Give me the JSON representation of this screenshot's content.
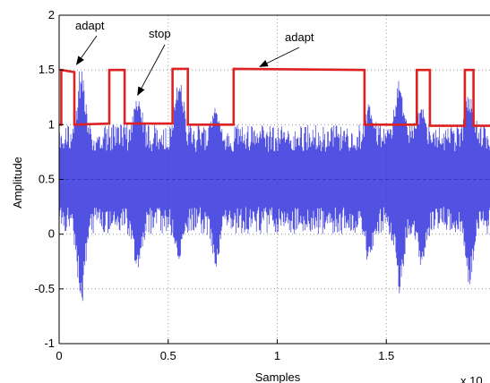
{
  "chart_data": {
    "type": "line",
    "title": "",
    "xlabel": "Samples",
    "ylabel": "Amplitude",
    "x_exponent_label": "x 10",
    "xlim": [
      0,
      2
    ],
    "ylim": [
      -1,
      2
    ],
    "x_ticks": [
      "0",
      "0.5",
      "1",
      "1.5"
    ],
    "y_ticks": [
      "-1",
      "-0.5",
      "0",
      "0.5",
      "1",
      "1.5",
      "2"
    ],
    "grid": true,
    "series": [
      {
        "role": "signal",
        "color": "#3333dd",
        "baseline": 0.5,
        "band": [
          0,
          1
        ],
        "peaks": [
          {
            "x": 0.1,
            "min": -0.72,
            "max": 1.55
          },
          {
            "x": 0.36,
            "min": -0.35,
            "max": 1.25
          },
          {
            "x": 0.55,
            "min": -0.25,
            "max": 1.5
          },
          {
            "x": 0.72,
            "min": -0.3,
            "max": 1.2
          },
          {
            "x": 1.42,
            "min": -0.3,
            "max": 1.2
          },
          {
            "x": 1.56,
            "min": -0.55,
            "max": 1.45
          },
          {
            "x": 1.66,
            "min": -0.3,
            "max": 1.2
          },
          {
            "x": 1.88,
            "min": -0.5,
            "max": 1.3
          }
        ]
      },
      {
        "role": "adaptation-state",
        "color": "#dd2222",
        "x": [
          0,
          0.01,
          0.01,
          0.07,
          0.07,
          0.23,
          0.23,
          0.3,
          0.3,
          0.52,
          0.52,
          0.59,
          0.59,
          0.8,
          0.8,
          1.4,
          1.4,
          1.64,
          1.64,
          1.7,
          1.7,
          1.86,
          1.86,
          1.9,
          1.9,
          2.0
        ],
        "y": [
          1.0,
          1.0,
          1.5,
          1.48,
          1.0,
          1.01,
          1.5,
          1.5,
          1.01,
          1.01,
          1.51,
          1.51,
          1.0,
          1.0,
          1.51,
          1.5,
          1.0,
          1.0,
          1.5,
          1.5,
          0.99,
          0.99,
          1.5,
          1.5,
          0.99,
          0.99
        ]
      }
    ],
    "annotations": [
      {
        "text": "adapt",
        "pointer_x": 0.08,
        "pointer_y": 1.55
      },
      {
        "text": "stop",
        "pointer_x": 0.36,
        "pointer_y": 1.27
      },
      {
        "text": "adapt",
        "pointer_x": 0.92,
        "pointer_y": 1.53
      }
    ]
  }
}
